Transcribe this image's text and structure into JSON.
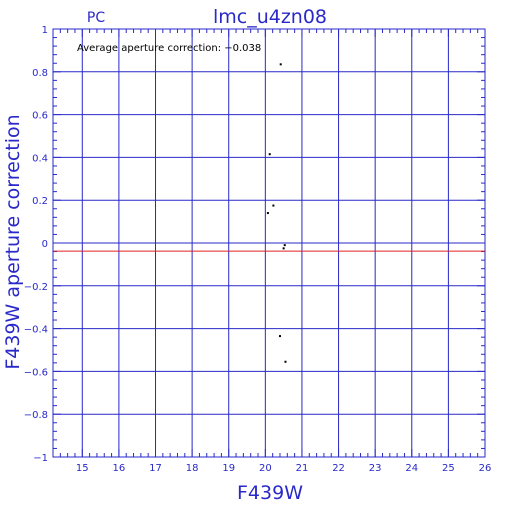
{
  "chart_data": {
    "type": "scatter",
    "title": "lmc_u4zn08",
    "subtitle": "PC",
    "xlabel": "F439W",
    "ylabel": "F439W aperture correction",
    "annotation": "Average aperture correction:  −0.038",
    "xlim": [
      14.2,
      26
    ],
    "ylim": [
      -1,
      1
    ],
    "x_ticks": [
      15,
      16,
      17,
      18,
      19,
      20,
      21,
      22,
      23,
      24,
      25,
      26
    ],
    "y_ticks": [
      -1,
      -0.8,
      -0.6,
      -0.4,
      -0.2,
      0,
      0.2,
      0.4,
      0.6,
      0.8,
      1
    ],
    "x_tick_labels": [
      "15",
      "16",
      "17",
      "18",
      "19",
      "20",
      "21",
      "22",
      "23",
      "24",
      "25",
      "26"
    ],
    "y_tick_labels": [
      "−1",
      "−0.8",
      "−0.6",
      "−0.4",
      "−0.2",
      "0",
      "0.2",
      "0.4",
      "0.6",
      "0.8",
      "1"
    ],
    "grid": true,
    "reference_line": {
      "y": -0.038,
      "color": "#e02020"
    },
    "points": [
      {
        "x": 20.42,
        "y": 0.835
      },
      {
        "x": 20.12,
        "y": 0.415
      },
      {
        "x": 20.22,
        "y": 0.175
      },
      {
        "x": 20.07,
        "y": 0.14
      },
      {
        "x": 20.53,
        "y": -0.01
      },
      {
        "x": 20.5,
        "y": -0.025
      },
      {
        "x": 20.4,
        "y": -0.435
      },
      {
        "x": 20.55,
        "y": -0.555
      }
    ],
    "colors": {
      "axes": "#2929c9",
      "points": "#000000",
      "reference_line": "#e02020"
    }
  }
}
